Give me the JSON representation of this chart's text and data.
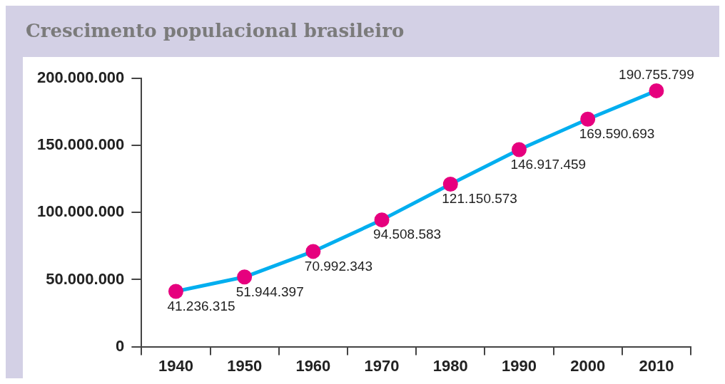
{
  "chart_data": {
    "type": "line",
    "title": "Crescimento populacional brasileiro",
    "categories": [
      "1940",
      "1950",
      "1960",
      "1970",
      "1980",
      "1990",
      "2000",
      "2010"
    ],
    "values": [
      41236315,
      51944397,
      70992343,
      94508583,
      121150573,
      146917459,
      169590693,
      190755799
    ],
    "value_labels": [
      "41.236.315",
      "51.944.397",
      "70.992.343",
      "94.508.583",
      "121.150.573",
      "146.917.459",
      "169.590.693",
      "190.755.799"
    ],
    "color": "#00aeef",
    "colors": [
      "#e6007e",
      "#e6007e",
      "#e6007e",
      "#e6007e",
      "#e6007e",
      "#e6007e",
      "#e6007e",
      "#e6007e"
    ],
    "marker": "circle",
    "grid": false,
    "legend": false,
    "ylim": [
      0,
      200000000
    ],
    "yticks": [
      0,
      {
        "value": 50000000,
        "label": "50.000.000"
      },
      {
        "value": 100000000,
        "label": "100.000.000"
      },
      {
        "value": 150000000,
        "label": "150.000.000"
      },
      {
        "value": 200000000,
        "label": "200.000.000"
      }
    ]
  }
}
